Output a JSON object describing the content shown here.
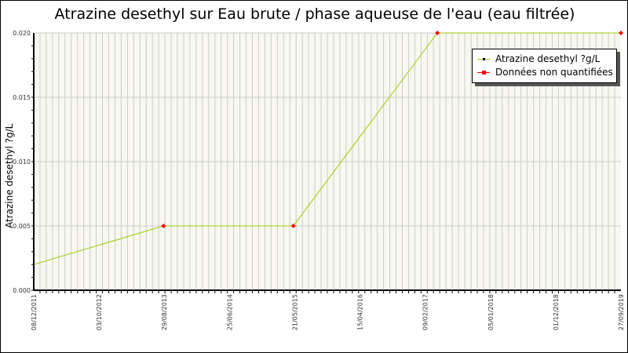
{
  "chart_data": {
    "type": "line",
    "title": "Atrazine desethyl sur Eau brute / phase aqueuse de l'eau (eau filtrée)",
    "ylabel": "Atrazine desethyl ?g/L",
    "xlabel": "",
    "ylim": [
      0,
      0.02
    ],
    "y_ticks": [
      "0.000",
      "0.005",
      "0.010",
      "0.015",
      "0.020"
    ],
    "xlim": [
      "2011-12-08",
      "2019-09-27"
    ],
    "x_ticks": [
      "08/12/2011",
      "03/10/2012",
      "29/08/2013",
      "25/06/2014",
      "21/05/2015",
      "15/04/2016",
      "09/02/2017",
      "05/01/2018",
      "01/12/2018",
      "27/09/2019"
    ],
    "grid": true,
    "legend_position": "top-right",
    "series": [
      {
        "name": "Atrazine desethyl ?g/L",
        "color": "#99cc00",
        "points": [
          [
            "2011-12-08",
            0.002
          ],
          [
            "2013-08-29",
            0.005
          ],
          [
            "2015-05-21",
            0.005
          ],
          [
            "2017-04-19",
            0.02
          ],
          [
            "2019-09-27",
            0.02
          ]
        ]
      },
      {
        "name": "Données non quantifiées",
        "color": "#ff0000",
        "points": [
          [
            "2013-08-29",
            0.005
          ],
          [
            "2015-05-21",
            0.005
          ],
          [
            "2017-04-19",
            0.02
          ],
          [
            "2019-09-27",
            0.02
          ]
        ]
      }
    ]
  }
}
